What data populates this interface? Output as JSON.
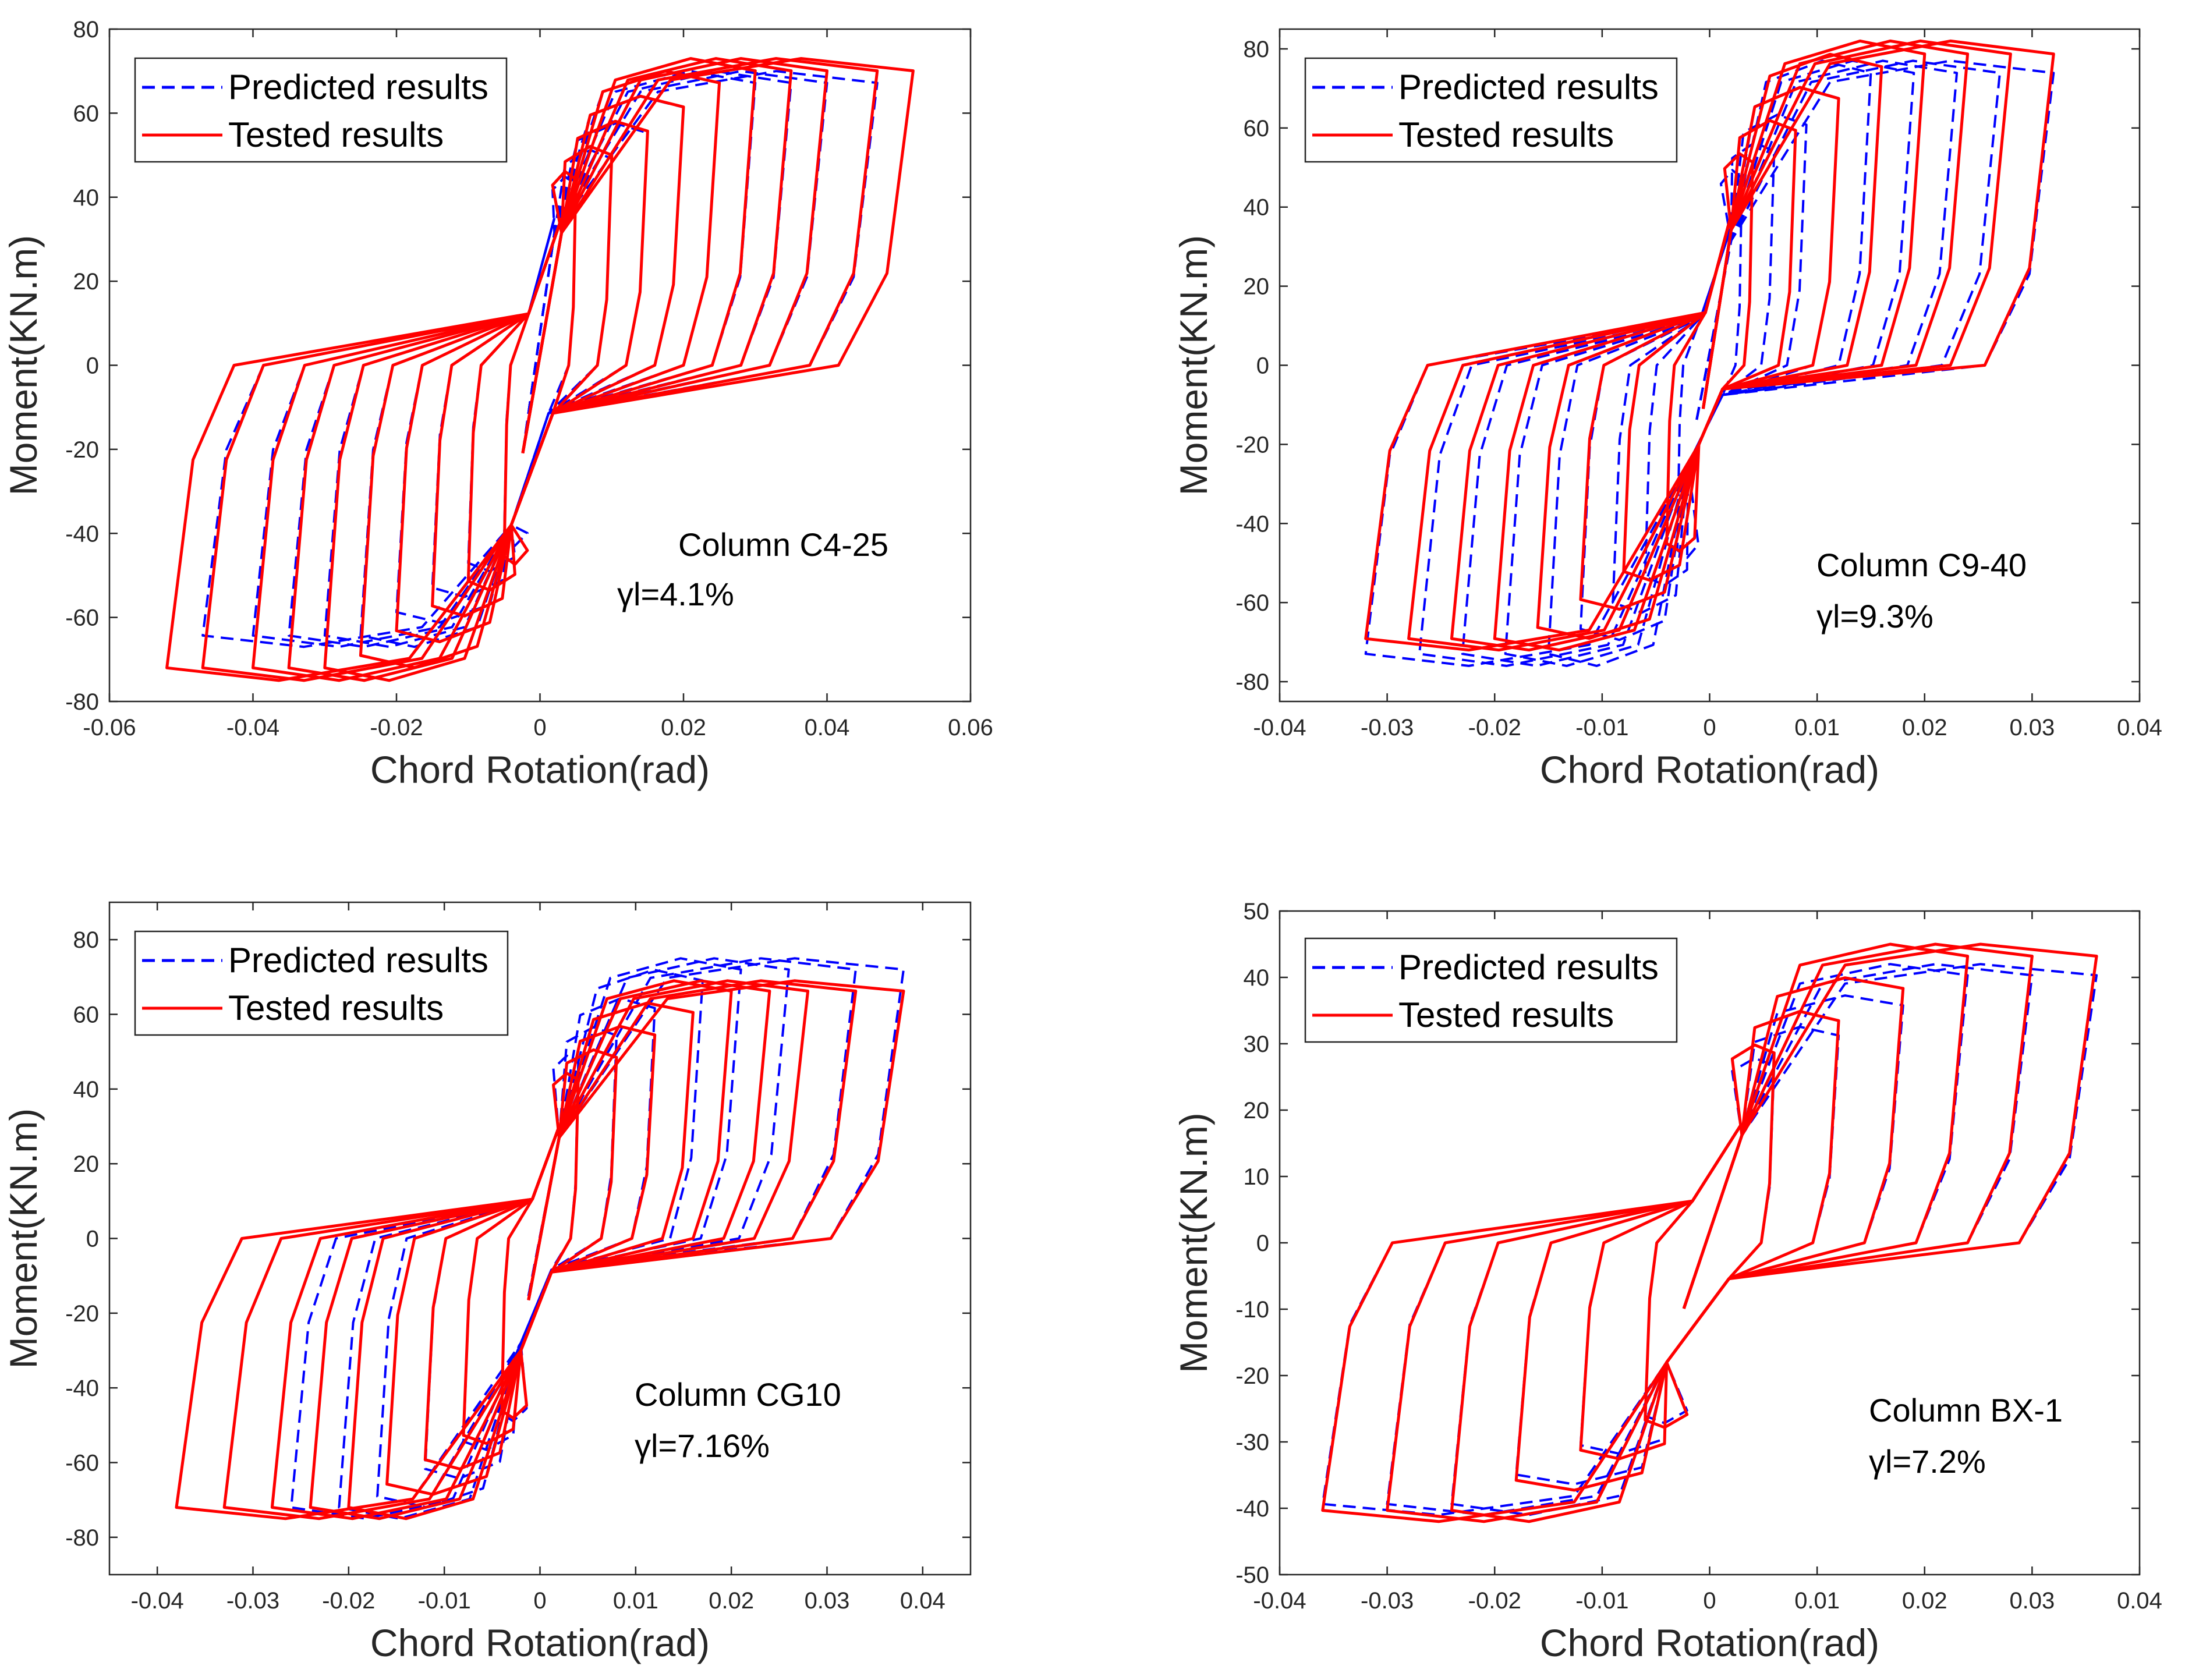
{
  "figure": {
    "description_label": "Moment vs chord rotation hysteresis comparison",
    "colors": {
      "predicted": "#0000FF",
      "tested": "#FF0000",
      "axis": "#262626",
      "background": "#FFFFFF"
    }
  },
  "chart_data": [
    {
      "type": "line",
      "xlabel": "Chord Rotation(rad)",
      "ylabel": "Moment(KN.m)",
      "xlim": [
        -0.06,
        0.06
      ],
      "ylim": [
        -80,
        80
      ],
      "xticks": [
        -0.06,
        -0.04,
        -0.02,
        0,
        0.02,
        0.04,
        0.06
      ],
      "xtick_labels": [
        "-0.06",
        "-0.04",
        "-0.02",
        "0",
        "0.02",
        "0.04",
        "0.06"
      ],
      "yticks": [
        -80,
        -60,
        -40,
        -20,
        0,
        20,
        40,
        60,
        80
      ],
      "ytick_labels": [
        "-80",
        "-60",
        "-40",
        "-20",
        "0",
        "20",
        "40",
        "60",
        "80"
      ],
      "legend": {
        "position": "top-left",
        "entries": [
          "Predicted results",
          "Tested results"
        ]
      },
      "annotation": {
        "line1": "Column C4-25",
        "line2": "γl=4.1%"
      },
      "series": [
        {
          "name": "Predicted results",
          "style": "dashed",
          "color": "#0000FF",
          "amplitudes": [
            0.005,
            0.01,
            0.015,
            0.02,
            0.025,
            0.03,
            0.035,
            0.04,
            0.047
          ],
          "x_zero": [
            0.043,
            -0.042
          ],
          "peak_pos": 70,
          "peak_neg": -67,
          "pinch_x": 0.002,
          "pinch_y": 35,
          "pinch_x_neg": -0.004,
          "pinch_y_neg": -38
        },
        {
          "name": "Tested results",
          "style": "solid",
          "color": "#FF0000",
          "amplitudes": [
            0.005,
            0.01,
            0.015,
            0.02,
            0.025,
            0.03,
            0.035,
            0.04,
            0.047,
            0.052
          ],
          "peak_pos": 73,
          "peak_neg": -75,
          "pinch_x": 0.003,
          "pinch_y": 35,
          "pinch_x_neg": -0.004,
          "pinch_y_neg": -38
        }
      ]
    },
    {
      "type": "line",
      "xlabel": "Chord Rotation(rad)",
      "ylabel": "Moment(KN.m)",
      "xlim": [
        -0.04,
        0.04
      ],
      "ylim": [
        -85,
        85
      ],
      "xticks": [
        -0.04,
        -0.03,
        -0.02,
        -0.01,
        0,
        0.01,
        0.02,
        0.03,
        0.04
      ],
      "xtick_labels": [
        "-0.04",
        "-0.03",
        "-0.02",
        "-0.01",
        "0",
        "0.01",
        "0.02",
        "0.03",
        "0.04"
      ],
      "yticks": [
        -80,
        -60,
        -40,
        -20,
        0,
        20,
        40,
        60,
        80
      ],
      "ytick_labels": [
        "-80",
        "-60",
        "-40",
        "-20",
        "0",
        "20",
        "40",
        "60",
        "80"
      ],
      "legend": {
        "position": "top-left",
        "entries": [
          "Predicted results",
          "Tested results"
        ]
      },
      "annotation": {
        "line1": "Column C9-40",
        "line2": "γl=9.3%"
      },
      "series": [
        {
          "name": "Predicted results",
          "style": "dashed",
          "color": "#0000FF",
          "amplitudes": [
            0.003,
            0.006,
            0.009,
            0.012,
            0.015,
            0.019,
            0.023,
            0.027,
            0.032
          ],
          "peak_pos": 77,
          "peak_neg": -76,
          "pinch_x": 0.002,
          "pinch_y": 35,
          "pinch_x_neg": -0.002,
          "pinch_y_neg": -25
        },
        {
          "name": "Tested results",
          "style": "solid",
          "color": "#FF0000",
          "amplitudes": [
            0.004,
            0.008,
            0.012,
            0.016,
            0.02,
            0.024,
            0.028,
            0.032
          ],
          "peak_pos": 82,
          "peak_neg": -72,
          "pinch_x": 0.002,
          "pinch_y": 38,
          "pinch_x_neg": -0.001,
          "pinch_y_neg": -20
        }
      ]
    },
    {
      "type": "line",
      "xlabel": "Chord Rotation(rad)",
      "ylabel": "Moment(KN.m)",
      "xlim": [
        -0.045,
        0.045
      ],
      "ylim": [
        -90,
        90
      ],
      "xticks": [
        -0.04,
        -0.03,
        -0.02,
        -0.01,
        0,
        0.01,
        0.02,
        0.03,
        0.04
      ],
      "xtick_labels": [
        "-0.04",
        "-0.03",
        "-0.02",
        "-0.01",
        "0",
        "0.01",
        "0.02",
        "0.03",
        "0.04"
      ],
      "yticks": [
        -80,
        -60,
        -40,
        -20,
        0,
        20,
        40,
        60,
        80
      ],
      "ytick_labels": [
        "-80",
        "-60",
        "-40",
        "-20",
        "0",
        "20",
        "40",
        "60",
        "80"
      ],
      "legend": {
        "position": "top-left",
        "entries": [
          "Predicted results",
          "Tested results"
        ]
      },
      "annotation": {
        "line1": "Column CG10",
        "line2": "γl=7.16%"
      },
      "series": [
        {
          "name": "Predicted results",
          "style": "dashed",
          "color": "#0000FF",
          "amplitudes": [
            0.004,
            0.008,
            0.012,
            0.017,
            0.021,
            0.026,
            0.033,
            0.038
          ],
          "peak_pos": 75,
          "peak_neg": -75,
          "pinch_x": 0.002,
          "pinch_y": 30,
          "pinch_x_neg": -0.002,
          "pinch_y_neg": -28
        },
        {
          "name": "Tested results",
          "style": "solid",
          "color": "#FF0000",
          "amplitudes": [
            0.004,
            0.008,
            0.012,
            0.016,
            0.02,
            0.024,
            0.028,
            0.033,
            0.038
          ],
          "peak_pos": 69,
          "peak_neg": -75,
          "pinch_x": 0.002,
          "pinch_y": 30,
          "pinch_x_neg": -0.002,
          "pinch_y_neg": -30
        }
      ]
    },
    {
      "type": "line",
      "xlabel": "Chord Rotation(rad)",
      "ylabel": "Moment(KN.m)",
      "xlim": [
        -0.04,
        0.04
      ],
      "ylim": [
        -50,
        50
      ],
      "xticks": [
        -0.04,
        -0.03,
        -0.02,
        -0.01,
        0,
        0.01,
        0.02,
        0.03,
        0.04
      ],
      "xtick_labels": [
        "-0.04",
        "-0.03",
        "-0.02",
        "-0.01",
        "0",
        "0.01",
        "0.02",
        "0.03",
        "0.04"
      ],
      "yticks": [
        -50,
        -40,
        -30,
        -20,
        -10,
        0,
        10,
        20,
        30,
        40,
        50
      ],
      "ytick_labels": [
        "-50",
        "-40",
        "-30",
        "-20",
        "-10",
        "0",
        "10",
        "20",
        "30",
        "40",
        "50"
      ],
      "legend": {
        "position": "top-left",
        "entries": [
          "Predicted results",
          "Tested results"
        ]
      },
      "annotation": {
        "line1": "Column BX-1",
        "line2": "γl=7.2%"
      },
      "series": [
        {
          "name": "Predicted results",
          "style": "dashed",
          "color": "#0000FF",
          "amplitudes": [
            0.006,
            0.012,
            0.018,
            0.024,
            0.03,
            0.036
          ],
          "peak_pos": 42,
          "peak_neg": -41,
          "pinch_x": 0.003,
          "pinch_y": 18,
          "pinch_x_neg": -0.004,
          "pinch_y_neg": -18
        },
        {
          "name": "Tested results",
          "style": "solid",
          "color": "#FF0000",
          "amplitudes": [
            0.006,
            0.012,
            0.018,
            0.024,
            0.03,
            0.036
          ],
          "peak_pos": 45,
          "peak_neg": -42,
          "pinch_x": 0.003,
          "pinch_y": 18,
          "pinch_x_neg": -0.004,
          "pinch_y_neg": -18
        }
      ]
    }
  ]
}
